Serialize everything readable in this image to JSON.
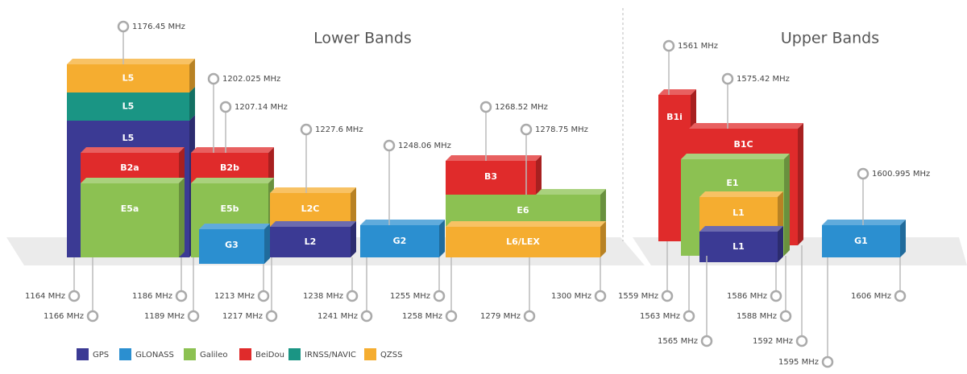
{
  "sections": [
    {
      "title": "Lower Bands"
    },
    {
      "title": "Upper Bands"
    }
  ],
  "blocks": [
    {
      "label": "L5"
    },
    {
      "label": "L5"
    },
    {
      "label": "L5"
    },
    {
      "label": "B2a"
    },
    {
      "label": "E5a"
    },
    {
      "label": "B2b"
    },
    {
      "label": "E5b"
    },
    {
      "label": "G3"
    },
    {
      "label": "L2C"
    },
    {
      "label": "L2"
    },
    {
      "label": "G2"
    },
    {
      "label": "E6"
    },
    {
      "label": "B3"
    },
    {
      "label": "L6/LEX"
    },
    {
      "label": "B1i"
    },
    {
      "label": "B1C"
    },
    {
      "label": "E1"
    },
    {
      "label": "L1"
    },
    {
      "label": "L1"
    },
    {
      "label": "G1"
    }
  ],
  "frequencies": [
    "1176.45 MHz",
    "1202.025 MHz",
    "1207.14 MHz",
    "1227.6 MHz",
    "1248.06 MHz",
    "1268.52 MHz",
    "1278.75 MHz",
    "1561 MHz",
    "1575.42 MHz",
    "1600.995 MHz",
    "1164 MHz",
    "1166 MHz",
    "1186 MHz",
    "1189 MHz",
    "1213 MHz",
    "1217 MHz",
    "1238 MHz",
    "1241 MHz",
    "1255 MHz",
    "1258 MHz",
    "1279 MHz",
    "1300 MHz",
    "1559 MHz",
    "1563 MHz",
    "1565 MHz",
    "1586 MHz",
    "1588 MHz",
    "1592 MHz",
    "1595 MHz",
    "1606 MHz"
  ],
  "legend": [
    {
      "name": "GPS",
      "color": "#3b3a94"
    },
    {
      "name": "GLONASS",
      "color": "#2b8fd0"
    },
    {
      "name": "Galileo",
      "color": "#8cc152"
    },
    {
      "name": "BeiDou",
      "color": "#e02b2b"
    },
    {
      "name": "IRNSS/NAVIC",
      "color": "#1a9584"
    },
    {
      "name": "QZSS",
      "color": "#f5ad30"
    }
  ]
}
